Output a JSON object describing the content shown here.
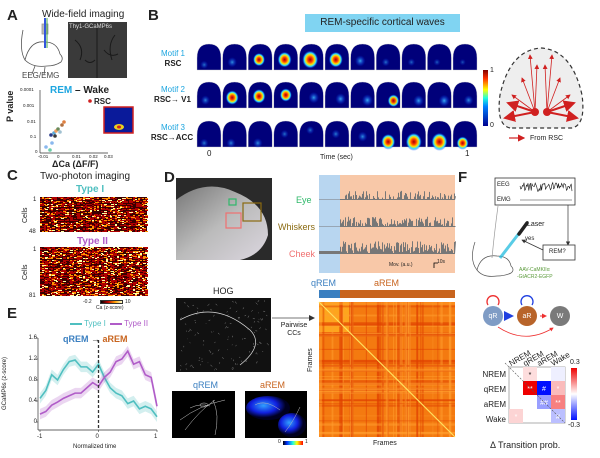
{
  "panels": {
    "a": {
      "label": "A",
      "title": "Wide-field imaging",
      "image_caption": "Thy1-GCaMP6s",
      "rig_label": "EEG/EMG",
      "scatter_title_rem": "REM",
      "scatter_title_rest": " – Wake",
      "ylabel": "P value",
      "xlabel": "ΔCa (ΔF/F)",
      "yticks": [
        "0.0001",
        "0.001",
        "0.01",
        "0.1",
        "0"
      ],
      "xticks": [
        "-0.01",
        "0",
        "0.01",
        "0.02",
        "0.03"
      ],
      "highlight_label": "RSC"
    },
    "b": {
      "label": "B",
      "banner": "REM-specific cortical waves",
      "motifs": [
        {
          "name": "Motif 1",
          "path": "RSC"
        },
        {
          "name": "Motif 2",
          "path": "RSC→ V1"
        },
        {
          "name": "Motif 3",
          "path": "RSC→ACC"
        }
      ],
      "time_start": "0",
      "time_end": "1",
      "time_label": "Time (sec)",
      "colorbar_max": "1",
      "colorbar_min": "0",
      "legend": "From RSC"
    },
    "c": {
      "label": "C",
      "title": "Two-photon imaging",
      "type1": "Type I",
      "type2": "Type II",
      "ylabel": "Cells",
      "type1_first": "1",
      "type1_last": "48",
      "type2_first": "1",
      "type2_last": "81",
      "cbar_min": "-0.2",
      "cbar_max": "10",
      "cbar_label": "Ca (z-score)"
    },
    "d": {
      "label": "D",
      "traces": [
        "Eye",
        "Whiskers",
        "Cheek"
      ],
      "scale_label": "Mov. (a.u.)",
      "scale_time": "10s",
      "hog": "HOG",
      "arrow_label_1": "Pairwise",
      "arrow_label_2": "CCs",
      "qrem": "qREM",
      "arem": "aREM",
      "frames_x": "Frames",
      "frames_y": "Frames",
      "cbar_min": "0",
      "cbar_max": "1"
    },
    "e": {
      "label": "E"
    },
    "f": {
      "label": "F",
      "eeg": "EEG",
      "emg": "EMG",
      "laser": "Laser",
      "yes": "yes",
      "decision": "REM?",
      "virus_1": "AAV-CaMKIIα",
      "virus_2": "-GtACR2-EGFP",
      "nodes": [
        "qR",
        "aR",
        "W"
      ],
      "rows": [
        "NREM",
        "qREM",
        "aREM",
        "Wake"
      ],
      "cols": [
        "NREM",
        "qREM",
        "aREM",
        "Wake"
      ],
      "cbar_max": "0.3",
      "cbar_min": "-0.3",
      "caption": "Δ Transition prob."
    }
  },
  "colors": {
    "type1": "#4fbfc0",
    "type2": "#b05cc8",
    "qrem": "#3a7fc0",
    "arem": "#c8641e",
    "rem_blue": "#1ea6e0",
    "eye": "#2fb86a",
    "whiskers": "#8a6a10",
    "cheek": "#f07070",
    "banner": "#80d4f2"
  },
  "chart_data": [
    {
      "type": "line",
      "panel": "E",
      "xlabel": "Normalized time",
      "ylabel": "GCaMP6s (z-score)",
      "xlim": [
        -1,
        1
      ],
      "ylim": [
        0,
        1.6
      ],
      "xticks": [
        "-1",
        "0",
        "1"
      ],
      "yticks": [
        "0",
        "0.4",
        "0.8",
        "1.2",
        "1.6"
      ],
      "annotation_left": "qREM",
      "annotation_arrow": "→",
      "annotation_right": "aREM",
      "legend_position": "top",
      "series": [
        {
          "name": "Type I",
          "x": [
            -1,
            -0.9,
            -0.8,
            -0.7,
            -0.6,
            -0.5,
            -0.4,
            -0.3,
            -0.2,
            -0.1,
            0,
            0.1,
            0.2,
            0.3,
            0.4,
            0.5,
            0.6,
            0.7,
            0.8,
            0.9,
            1
          ],
          "y": [
            0.45,
            0.6,
            0.9,
            0.8,
            1.0,
            1.15,
            1.18,
            1.05,
            1.05,
            0.95,
            1.1,
            0.85,
            0.65,
            0.55,
            0.5,
            0.35,
            0.4,
            0.25,
            0.3,
            0.25,
            0.1
          ]
        },
        {
          "name": "Type II",
          "x": [
            -1,
            -0.9,
            -0.8,
            -0.7,
            -0.6,
            -0.5,
            -0.4,
            -0.3,
            -0.2,
            -0.1,
            0,
            0.1,
            0.2,
            0.3,
            0.4,
            0.5,
            0.6,
            0.7,
            0.8,
            0.9,
            1
          ],
          "y": [
            0.15,
            0.2,
            0.32,
            0.38,
            0.45,
            0.5,
            0.55,
            0.55,
            0.65,
            0.75,
            0.68,
            0.85,
            0.95,
            1.15,
            1.2,
            1.35,
            1.1,
            1.15,
            0.9,
            0.85,
            0.3
          ]
        }
      ]
    },
    {
      "type": "heatmap",
      "panel": "F",
      "rows": [
        "NREM",
        "qREM",
        "aREM",
        "Wake"
      ],
      "cols": [
        "NREM",
        "qREM",
        "aREM",
        "Wake"
      ],
      "range": [
        -0.3,
        0.3
      ],
      "values": [
        [
          0,
          0.04,
          0,
          -0.02
        ],
        [
          0,
          0.3,
          -0.3,
          0.08
        ],
        [
          0,
          0,
          -0.12,
          0.15
        ],
        [
          0.05,
          0,
          0,
          -0.08
        ]
      ],
      "marks": [
        [
          "",
          "*",
          "",
          ""
        ],
        [
          "",
          "**",
          "#",
          "*"
        ],
        [
          "",
          "",
          "##",
          "**"
        ],
        [
          "*",
          "",
          "",
          "#"
        ]
      ]
    }
  ]
}
